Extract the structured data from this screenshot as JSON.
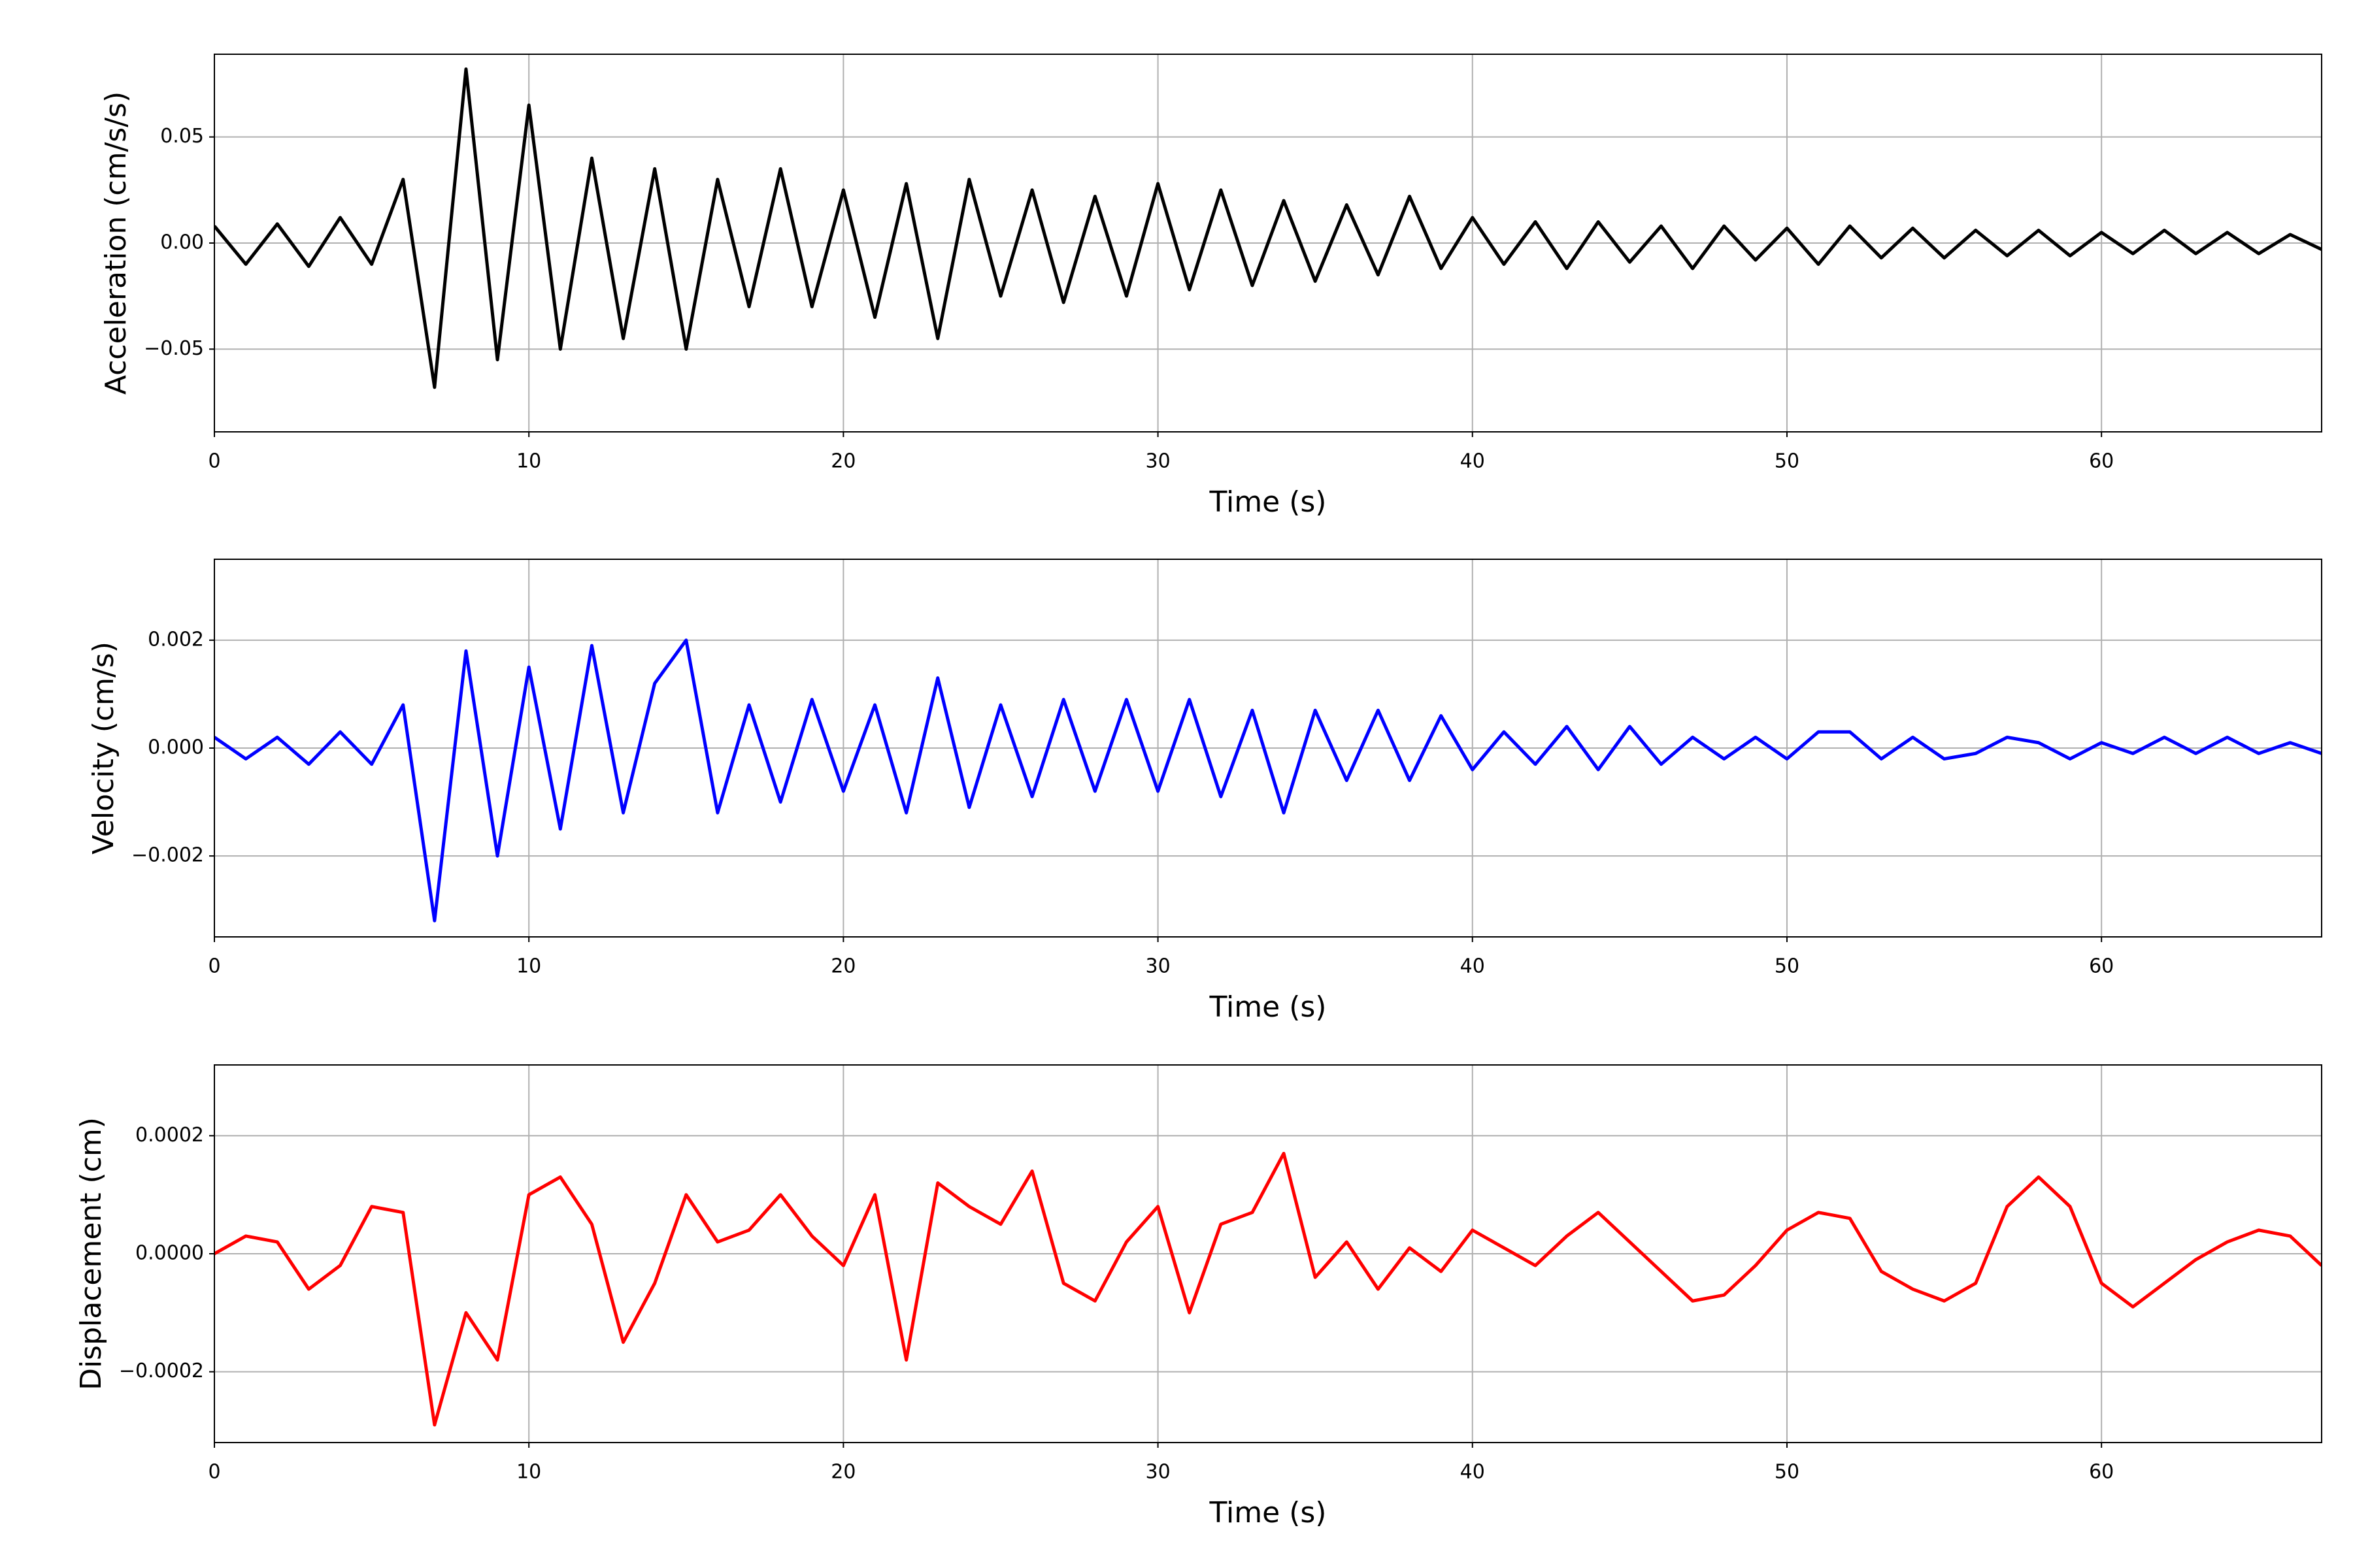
{
  "chart_data": [
    {
      "type": "line",
      "color": "#000000",
      "xlabel": "Time (s)",
      "ylabel": "Acceleration (cm/s/s)",
      "grid": true,
      "xlim": [
        0,
        67
      ],
      "xticks": [
        0,
        10,
        20,
        30,
        40,
        50,
        60
      ],
      "ylim": [
        -0.089,
        0.089
      ],
      "yticks": [
        {
          "value": -0.05,
          "label": "−0.05"
        },
        {
          "value": 0,
          "label": "0.00"
        },
        {
          "value": 0.05,
          "label": "0.05"
        }
      ],
      "x": [
        0,
        1,
        2,
        3,
        4,
        5,
        6,
        7,
        8,
        9,
        10,
        11,
        12,
        13,
        14,
        15,
        16,
        17,
        18,
        19,
        20,
        21,
        22,
        23,
        24,
        25,
        26,
        27,
        28,
        29,
        30,
        31,
        32,
        33,
        34,
        35,
        36,
        37,
        38,
        39,
        40,
        41,
        42,
        43,
        44,
        45,
        46,
        47,
        48,
        49,
        50,
        51,
        52,
        53,
        54,
        55,
        56,
        57,
        58,
        59,
        60,
        61,
        62,
        63,
        64,
        65,
        66,
        67
      ],
      "values": [
        0.008,
        -0.01,
        0.009,
        -0.011,
        0.012,
        -0.01,
        0.03,
        -0.068,
        0.082,
        -0.055,
        0.065,
        -0.05,
        0.04,
        -0.045,
        0.035,
        -0.05,
        0.03,
        -0.03,
        0.035,
        -0.03,
        0.025,
        -0.035,
        0.028,
        -0.045,
        0.03,
        -0.025,
        0.025,
        -0.028,
        0.022,
        -0.025,
        0.028,
        -0.022,
        0.025,
        -0.02,
        0.02,
        -0.018,
        0.018,
        -0.015,
        0.022,
        -0.012,
        0.012,
        -0.01,
        0.01,
        -0.012,
        0.01,
        -0.009,
        0.008,
        -0.012,
        0.008,
        -0.008,
        0.007,
        -0.01,
        0.008,
        -0.007,
        0.007,
        -0.007,
        0.006,
        -0.006,
        0.006,
        -0.006,
        0.005,
        -0.005,
        0.006,
        -0.005,
        0.005,
        -0.005,
        0.004,
        -0.003
      ]
    },
    {
      "type": "line",
      "color": "#0000ff",
      "xlabel": "Time (s)",
      "ylabel": "Velocity (cm/s)",
      "grid": true,
      "xlim": [
        0,
        67
      ],
      "xticks": [
        0,
        10,
        20,
        30,
        40,
        50,
        60
      ],
      "ylim": [
        -0.0035,
        0.0035
      ],
      "yticks": [
        {
          "value": -0.002,
          "label": "−0.002"
        },
        {
          "value": 0,
          "label": "0.000"
        },
        {
          "value": 0.002,
          "label": "0.002"
        }
      ],
      "x": [
        0,
        1,
        2,
        3,
        4,
        5,
        6,
        7,
        8,
        9,
        10,
        11,
        12,
        13,
        14,
        15,
        16,
        17,
        18,
        19,
        20,
        21,
        22,
        23,
        24,
        25,
        26,
        27,
        28,
        29,
        30,
        31,
        32,
        33,
        34,
        35,
        36,
        37,
        38,
        39,
        40,
        41,
        42,
        43,
        44,
        45,
        46,
        47,
        48,
        49,
        50,
        51,
        52,
        53,
        54,
        55,
        56,
        57,
        58,
        59,
        60,
        61,
        62,
        63,
        64,
        65,
        66,
        67
      ],
      "values": [
        0.0002,
        -0.0002,
        0.0002,
        -0.0003,
        0.0003,
        -0.0003,
        0.0008,
        -0.0032,
        0.0018,
        -0.002,
        0.0015,
        -0.0015,
        0.0019,
        -0.0012,
        0.0012,
        0.002,
        -0.0012,
        0.0008,
        -0.001,
        0.0009,
        -0.0008,
        0.0008,
        -0.0012,
        0.0013,
        -0.0011,
        0.0008,
        -0.0009,
        0.0009,
        -0.0008,
        0.0009,
        -0.0008,
        0.0009,
        -0.0009,
        0.0007,
        -0.0012,
        0.0007,
        -0.0006,
        0.0007,
        -0.0006,
        0.0006,
        -0.0004,
        0.0003,
        -0.0003,
        0.0004,
        -0.0004,
        0.0004,
        -0.0003,
        0.0002,
        -0.0002,
        0.0002,
        -0.0002,
        0.0003,
        0.0003,
        -0.0002,
        0.0002,
        -0.0002,
        -0.0001,
        0.0002,
        0.0001,
        -0.0002,
        0.0001,
        -0.0001,
        0.0002,
        -0.0001,
        0.0002,
        -0.0001,
        0.0001,
        -0.0001
      ]
    },
    {
      "type": "line",
      "color": "#ff0000",
      "xlabel": "Time (s)",
      "ylabel": "Displacement (cm)",
      "grid": true,
      "xlim": [
        0,
        67
      ],
      "xticks": [
        0,
        10,
        20,
        30,
        40,
        50,
        60
      ],
      "ylim": [
        -0.00032,
        0.00032
      ],
      "yticks": [
        {
          "value": -0.0002,
          "label": "−0.0002"
        },
        {
          "value": 0,
          "label": "0.0000"
        },
        {
          "value": 0.0002,
          "label": "0.0002"
        }
      ],
      "x": [
        0,
        1,
        2,
        3,
        4,
        5,
        6,
        7,
        8,
        9,
        10,
        11,
        12,
        13,
        14,
        15,
        16,
        17,
        18,
        19,
        20,
        21,
        22,
        23,
        24,
        25,
        26,
        27,
        28,
        29,
        30,
        31,
        32,
        33,
        34,
        35,
        36,
        37,
        38,
        39,
        40,
        41,
        42,
        43,
        44,
        45,
        46,
        47,
        48,
        49,
        50,
        51,
        52,
        53,
        54,
        55,
        56,
        57,
        58,
        59,
        60,
        61,
        62,
        63,
        64,
        65,
        66,
        67
      ],
      "values": [
        0,
        3e-05,
        2e-05,
        -6e-05,
        -2e-05,
        8e-05,
        7e-05,
        -0.00029,
        -0.0001,
        -0.00018,
        0.0001,
        0.00013,
        5e-05,
        -0.00015,
        -5e-05,
        0.0001,
        2e-05,
        4e-05,
        0.0001,
        3e-05,
        -2e-05,
        0.0001,
        -0.00018,
        0.00012,
        8e-05,
        5e-05,
        0.00014,
        -5e-05,
        -8e-05,
        2e-05,
        8e-05,
        -0.0001,
        5e-05,
        7e-05,
        0.00017,
        -4e-05,
        2e-05,
        -6e-05,
        1e-05,
        -3e-05,
        4e-05,
        1e-05,
        -2e-05,
        3e-05,
        7e-05,
        2e-05,
        -3e-05,
        -8e-05,
        -7e-05,
        -2e-05,
        4e-05,
        7e-05,
        6e-05,
        -3e-05,
        -6e-05,
        -8e-05,
        -5e-05,
        8e-05,
        0.00013,
        8e-05,
        -5e-05,
        -9e-05,
        -5e-05,
        -1e-05,
        2e-05,
        4e-05,
        3e-05,
        -2e-05
      ]
    }
  ]
}
